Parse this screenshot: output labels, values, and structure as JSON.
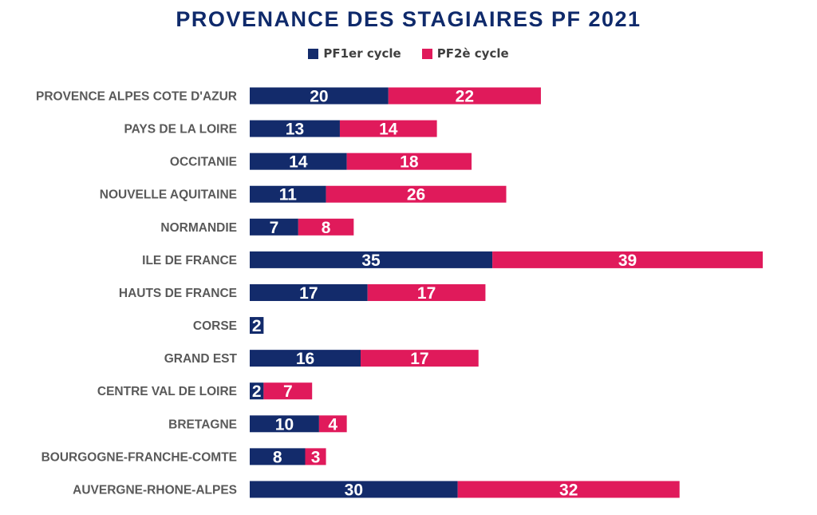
{
  "chart_data": {
    "type": "bar",
    "orientation": "horizontal",
    "stacked": true,
    "title": "PROVENANCE DES STAGIAIRES PF 2021",
    "legend_position": "top",
    "grid": false,
    "categories": [
      "PROVENCE ALPES COTE D'AZUR",
      "PAYS DE LA LOIRE",
      "OCCITANIE",
      "NOUVELLE AQUITAINE",
      "NORMANDIE",
      "ILE DE FRANCE",
      "HAUTS DE FRANCE",
      "CORSE",
      "GRAND EST",
      "CENTRE VAL DE LOIRE",
      "BRETAGNE",
      "BOURGOGNE-FRANCHE-COMTE",
      "AUVERGNE-RHONE-ALPES"
    ],
    "series": [
      {
        "name": "PF1er cycle",
        "color": "#132b6b",
        "values": [
          20,
          13,
          14,
          11,
          7,
          35,
          17,
          2,
          16,
          2,
          10,
          8,
          30
        ]
      },
      {
        "name": "PF2è cycle",
        "color": "#e01a5b",
        "values": [
          22,
          14,
          18,
          26,
          8,
          39,
          17,
          null,
          17,
          7,
          4,
          3,
          32
        ]
      }
    ],
    "xlim": [
      0,
      74
    ]
  }
}
